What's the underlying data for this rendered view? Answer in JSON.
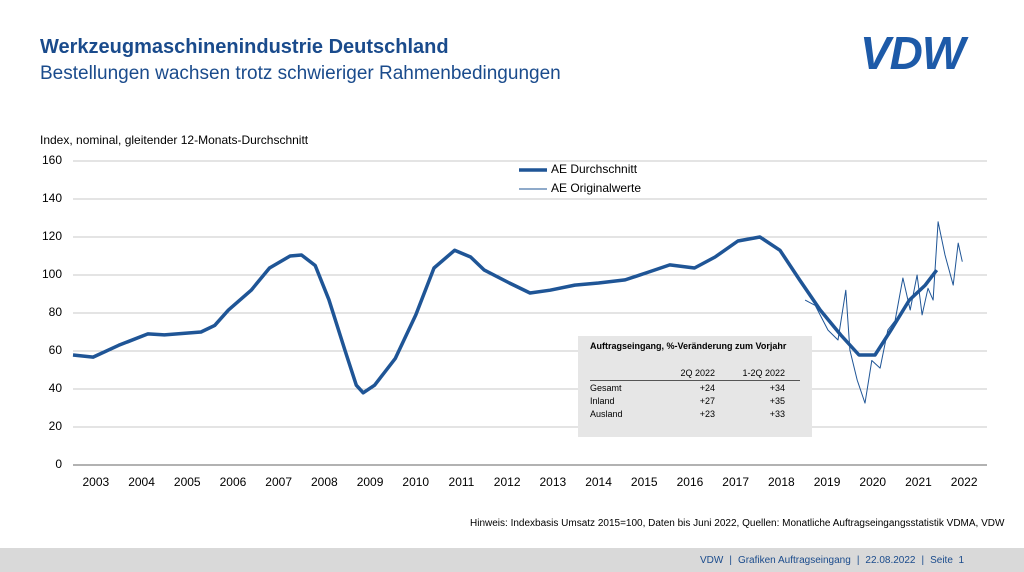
{
  "header": {
    "title": "Werkzeugmaschinenindustrie Deutschland",
    "subtitle": "Bestellungen wachsen trotz schwieriger Rahmenbedingungen",
    "logo": "VDW"
  },
  "chart_data": {
    "type": "line",
    "y_label": "Index, nominal, gleitender 12-Monats-Durchschnitt",
    "xlim": [
      2003,
      2023
    ],
    "ylim": [
      0,
      160
    ],
    "yticks": [
      0,
      20,
      40,
      60,
      80,
      100,
      120,
      140,
      160
    ],
    "xticks": [
      {
        "value": 2003.5,
        "label": "2003"
      },
      {
        "value": 2004.5,
        "label": "2004"
      },
      {
        "value": 2005.5,
        "label": "2005"
      },
      {
        "value": 2006.5,
        "label": "2006"
      },
      {
        "value": 2007.5,
        "label": "2007"
      },
      {
        "value": 2008.5,
        "label": "2008"
      },
      {
        "value": 2009.5,
        "label": "2009"
      },
      {
        "value": 2010.5,
        "label": "2010"
      },
      {
        "value": 2011.5,
        "label": "2011"
      },
      {
        "value": 2012.5,
        "label": "2012"
      },
      {
        "value": 2013.5,
        "label": "2013"
      },
      {
        "value": 2014.5,
        "label": "2014"
      },
      {
        "value": 2015.5,
        "label": "2015"
      },
      {
        "value": 2016.5,
        "label": "2016"
      },
      {
        "value": 2017.5,
        "label": "2017"
      },
      {
        "value": 2018.5,
        "label": "2018"
      },
      {
        "value": 2019.5,
        "label": "2019"
      },
      {
        "value": 2020.5,
        "label": "2020"
      },
      {
        "value": 2021.5,
        "label": "2021"
      },
      {
        "value": 2022.5,
        "label": "2022"
      }
    ],
    "grid": true,
    "legend": "top",
    "series": [
      {
        "name": "AE Durchschnitt",
        "color": "#1f5596",
        "x": [
          2003.0,
          2003.44,
          2004.0,
          2004.64,
          2005.0,
          2005.8,
          2006.1,
          2006.4,
          2006.9,
          2007.3,
          2007.75,
          2008.0,
          2008.3,
          2008.6,
          2008.95,
          2009.2,
          2009.35,
          2009.6,
          2010.05,
          2010.5,
          2010.9,
          2011.35,
          2011.7,
          2012.0,
          2012.55,
          2013.0,
          2013.44,
          2013.98,
          2014.5,
          2015.08,
          2015.6,
          2016.06,
          2016.6,
          2017.05,
          2017.55,
          2018.03,
          2018.47,
          2018.9,
          2019.35,
          2019.8,
          2020.2,
          2020.55,
          2020.9,
          2021.3,
          2021.65,
          2021.9
        ],
        "values": [
          57.9,
          56.8,
          63,
          69,
          68.5,
          70,
          73.5,
          81.5,
          92,
          103.7,
          110,
          110.5,
          105,
          87,
          60.5,
          42,
          38,
          42,
          56,
          79,
          103.7,
          113,
          109.5,
          102.6,
          95.8,
          90.5,
          92,
          94.7,
          95.8,
          97.4,
          101.6,
          105.3,
          103.7,
          109.5,
          117.9,
          120,
          113,
          97.4,
          81.6,
          68.4,
          57.9,
          57.9,
          71,
          86.8,
          94.7,
          102.6
        ]
      },
      {
        "name": "AE Originalwerte",
        "color": "#1f5596",
        "x": [
          2019.02,
          2019.24,
          2019.52,
          2019.74,
          2019.91,
          2020.0,
          2020.16,
          2020.33,
          2020.48,
          2020.66,
          2020.83,
          2020.99,
          2021.16,
          2021.32,
          2021.47,
          2021.58,
          2021.71,
          2021.82,
          2021.93,
          2022.08,
          2022.26,
          2022.37,
          2022.46
        ],
        "values": [
          86.8,
          84,
          71,
          65.8,
          92,
          60.5,
          44.7,
          32.6,
          55,
          51,
          71,
          76,
          98.4,
          81.6,
          100,
          79,
          93,
          86.8,
          128,
          110.5,
          94.7,
          116.8,
          107
        ]
      }
    ]
  },
  "table": {
    "title": "Auftragseingang, %-Veränderung zum Vorjahr",
    "columns": [
      "2Q 2022",
      "1-2Q 2022"
    ],
    "rows": [
      {
        "label": "Gesamt",
        "values": [
          "+24",
          "+34"
        ]
      },
      {
        "label": "Inland",
        "values": [
          "+27",
          "+35"
        ]
      },
      {
        "label": "Ausland",
        "values": [
          "+23",
          "+33"
        ]
      }
    ]
  },
  "note": "Hinweis: Indexbasis Umsatz 2015=100, Daten bis Juni 2022, Quellen: Monatliche Auftragseingangsstatistik VDMA, VDW",
  "footer": [
    "VDW",
    "Grafiken Auftragseingang",
    "22.08.2022",
    "Seite  1"
  ]
}
